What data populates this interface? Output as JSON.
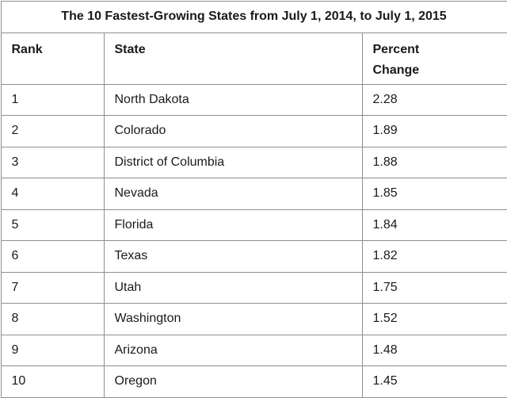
{
  "table": {
    "title": "The 10 Fastest-Growing States from July 1, 2014, to July 1, 2015",
    "headers": {
      "rank": "Rank",
      "state": "State",
      "percent_line1": "Percent",
      "percent_line2": "Change"
    },
    "rows": [
      {
        "rank": "1",
        "state": "North Dakota",
        "percent": "2.28"
      },
      {
        "rank": "2",
        "state": "Colorado",
        "percent": "1.89"
      },
      {
        "rank": "3",
        "state": "District of Columbia",
        "percent": "1.88"
      },
      {
        "rank": "4",
        "state": "Nevada",
        "percent": "1.85"
      },
      {
        "rank": "5",
        "state": "Florida",
        "percent": "1.84"
      },
      {
        "rank": "6",
        "state": "Texas",
        "percent": "1.82"
      },
      {
        "rank": "7",
        "state": "Utah",
        "percent": "1.75"
      },
      {
        "rank": "8",
        "state": "Washington",
        "percent": "1.52"
      },
      {
        "rank": "9",
        "state": "Arizona",
        "percent": "1.48"
      },
      {
        "rank": "10",
        "state": "Oregon",
        "percent": "1.45"
      }
    ]
  }
}
